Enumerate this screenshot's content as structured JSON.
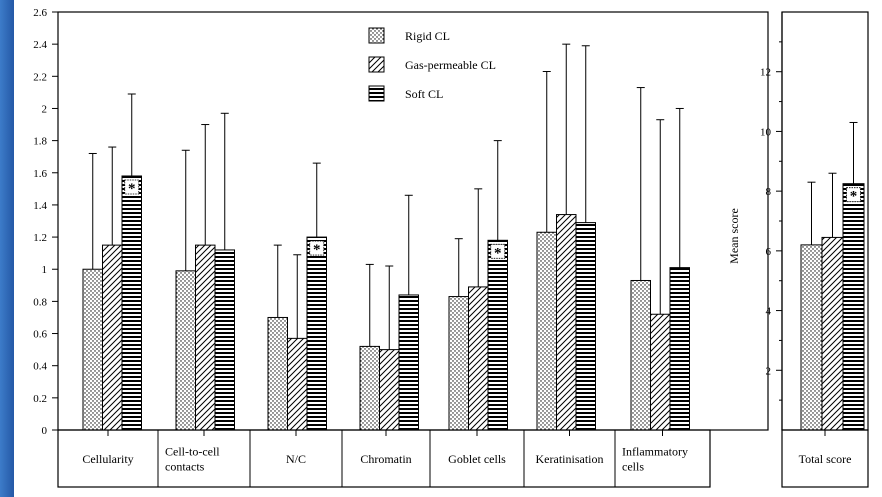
{
  "colors": {
    "background": "#2a62b0",
    "plot": "#ffffff",
    "ink": "#000000"
  },
  "chart_data": [
    {
      "type": "bar",
      "categories": [
        "Cellularity",
        "Cell-to-cell contacts",
        "N/C",
        "Chromatin",
        "Goblet cells",
        "Keratinisation",
        "Inflammatory cells"
      ],
      "category_lines": [
        [
          "Cellularity"
        ],
        [
          "Cell-to-cell",
          "contacts"
        ],
        [
          "N/C"
        ],
        [
          "Chromatin"
        ],
        [
          "Goblet cells"
        ],
        [
          "Keratinisation"
        ],
        [
          "Inflammatory",
          "cells"
        ]
      ],
      "series": [
        {
          "name": "Rigid CL",
          "pattern": "dots",
          "values": [
            1.0,
            0.99,
            0.7,
            0.52,
            0.83,
            1.23,
            0.93
          ],
          "errors": [
            1.72,
            1.74,
            1.15,
            1.03,
            1.19,
            2.23,
            2.13
          ]
        },
        {
          "name": "Gas-permeable CL",
          "pattern": "diagonal",
          "values": [
            1.15,
            1.15,
            0.57,
            0.5,
            0.89,
            1.34,
            0.72
          ],
          "errors": [
            1.76,
            1.9,
            1.09,
            1.02,
            1.5,
            2.4,
            1.93
          ]
        },
        {
          "name": "Soft CL",
          "pattern": "horizontal",
          "values": [
            1.58,
            1.12,
            1.2,
            0.84,
            1.18,
            1.29,
            1.01
          ],
          "errors": [
            2.09,
            1.97,
            1.66,
            1.46,
            1.8,
            2.39,
            2.0
          ]
        }
      ],
      "significance": {
        "series": "Soft CL",
        "categories": [
          "Cellularity",
          "N/C",
          "Goblet cells"
        ],
        "marker": "*"
      },
      "ylim": [
        0,
        2.6
      ],
      "yticks": [
        "0",
        "0.2",
        "0.4",
        "0.6",
        "0.8",
        "1",
        "1.2",
        "1.4",
        "1.6",
        "1.8",
        "2",
        "2.2",
        "2.4",
        "2.6"
      ],
      "legend": [
        "Rigid CL",
        "Gas-permeable CL",
        "Soft CL"
      ],
      "legend_position": "top-center",
      "ylabel": "",
      "xlabel": ""
    },
    {
      "type": "bar",
      "categories": [
        "Total score"
      ],
      "category_lines": [
        [
          "Total score"
        ]
      ],
      "series": [
        {
          "name": "Rigid CL",
          "values": [
            6.2
          ],
          "errors": [
            8.3
          ]
        },
        {
          "name": "Gas-permeable CL",
          "values": [
            6.45
          ],
          "errors": [
            8.6
          ]
        },
        {
          "name": "Soft CL",
          "values": [
            8.25
          ],
          "errors": [
            10.3
          ]
        }
      ],
      "significance": {
        "series": "Soft CL",
        "categories": [
          "Total score"
        ],
        "marker": "*"
      },
      "ylim": [
        0,
        14
      ],
      "yticks": [
        "2",
        "4",
        "6",
        "8",
        "10",
        "12"
      ],
      "ylabel": "Mean score",
      "xlabel": ""
    }
  ]
}
